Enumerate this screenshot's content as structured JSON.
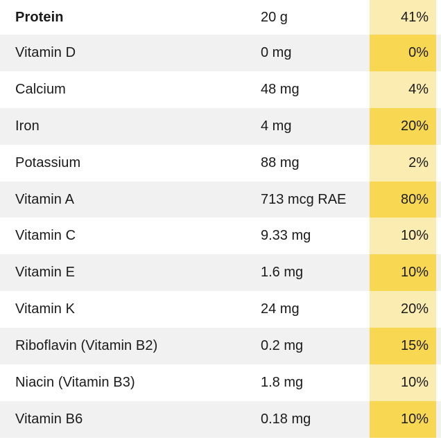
{
  "colors": {
    "dv_light": "#fbecb1",
    "dv_dark": "#f8d853",
    "row_stripe": "#f1f1f1"
  },
  "nutrients": [
    {
      "name": "Protein",
      "amount": "20 g",
      "dv": "41%"
    },
    {
      "name": "Vitamin D",
      "amount": "0 mg",
      "dv": "0%"
    },
    {
      "name": "Calcium",
      "amount": "48 mg",
      "dv": "4%"
    },
    {
      "name": "Iron",
      "amount": "4 mg",
      "dv": "20%"
    },
    {
      "name": "Potassium",
      "amount": "88 mg",
      "dv": "2%"
    },
    {
      "name": "Vitamin A",
      "amount": "713 mcg RAE",
      "dv": "80%"
    },
    {
      "name": "Vitamin C",
      "amount": "9.33 mg",
      "dv": "10%"
    },
    {
      "name": "Vitamin E",
      "amount": "1.6 mg",
      "dv": "10%"
    },
    {
      "name": "Vitamin K",
      "amount": "24 mg",
      "dv": "20%"
    },
    {
      "name": "Riboflavin (Vitamin B2)",
      "amount": "0.2 mg",
      "dv": "15%"
    },
    {
      "name": "Niacin (Vitamin B3)",
      "amount": "1.8 mg",
      "dv": "10%"
    },
    {
      "name": "Vitamin B6",
      "amount": "0.18 mg",
      "dv": "10%"
    }
  ]
}
